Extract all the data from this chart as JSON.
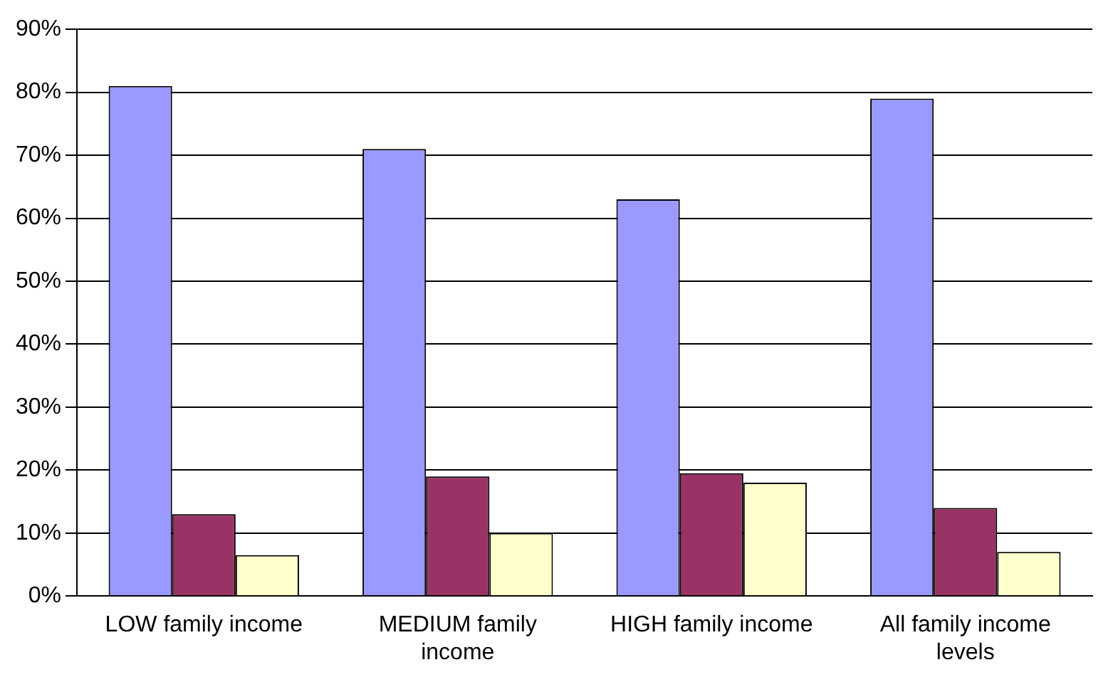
{
  "chart_data": {
    "type": "bar",
    "categories": [
      "LOW family income",
      "MEDIUM family income",
      "HIGH family income",
      "All family income levels"
    ],
    "series": [
      {
        "color": "#9999ff",
        "values": [
          81,
          71,
          63,
          79
        ]
      },
      {
        "color": "#993366",
        "values": [
          13,
          19,
          19.5,
          14
        ]
      },
      {
        "color": "#ffffcc",
        "values": [
          6.5,
          10,
          18,
          7
        ]
      }
    ],
    "ylim": [
      0,
      90
    ],
    "yticks": [
      {
        "value": 0,
        "label": "0%"
      },
      {
        "value": 10,
        "label": "10%"
      },
      {
        "value": 20,
        "label": "20%"
      },
      {
        "value": 30,
        "label": "30%"
      },
      {
        "value": 40,
        "label": "40%"
      },
      {
        "value": 50,
        "label": "50%"
      },
      {
        "value": 60,
        "label": "60%"
      },
      {
        "value": 70,
        "label": "70%"
      },
      {
        "value": 80,
        "label": "80%"
      },
      {
        "value": 90,
        "label": "90%"
      }
    ],
    "grid": "y"
  }
}
